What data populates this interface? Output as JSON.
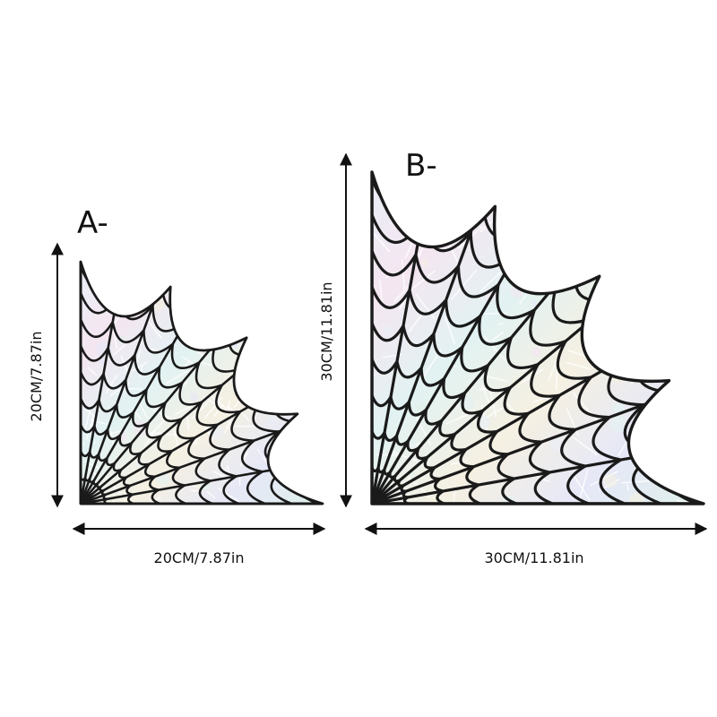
{
  "variants": [
    {
      "id": "A",
      "label": "A-",
      "height_label": "20CM/7.87in",
      "width_label": "20CM/7.87in"
    },
    {
      "id": "B",
      "label": "B-",
      "height_label": "30CM/11.81in",
      "width_label": "30CM/11.81in"
    }
  ],
  "colors": {
    "web_stroke": "#1a1a1a",
    "iridescent": [
      "#e9eef6",
      "#f4e6f1",
      "#e2f2f2",
      "#f5f0e2",
      "#e6e8f7",
      "#dff0ea"
    ],
    "arrow": "#111111"
  }
}
